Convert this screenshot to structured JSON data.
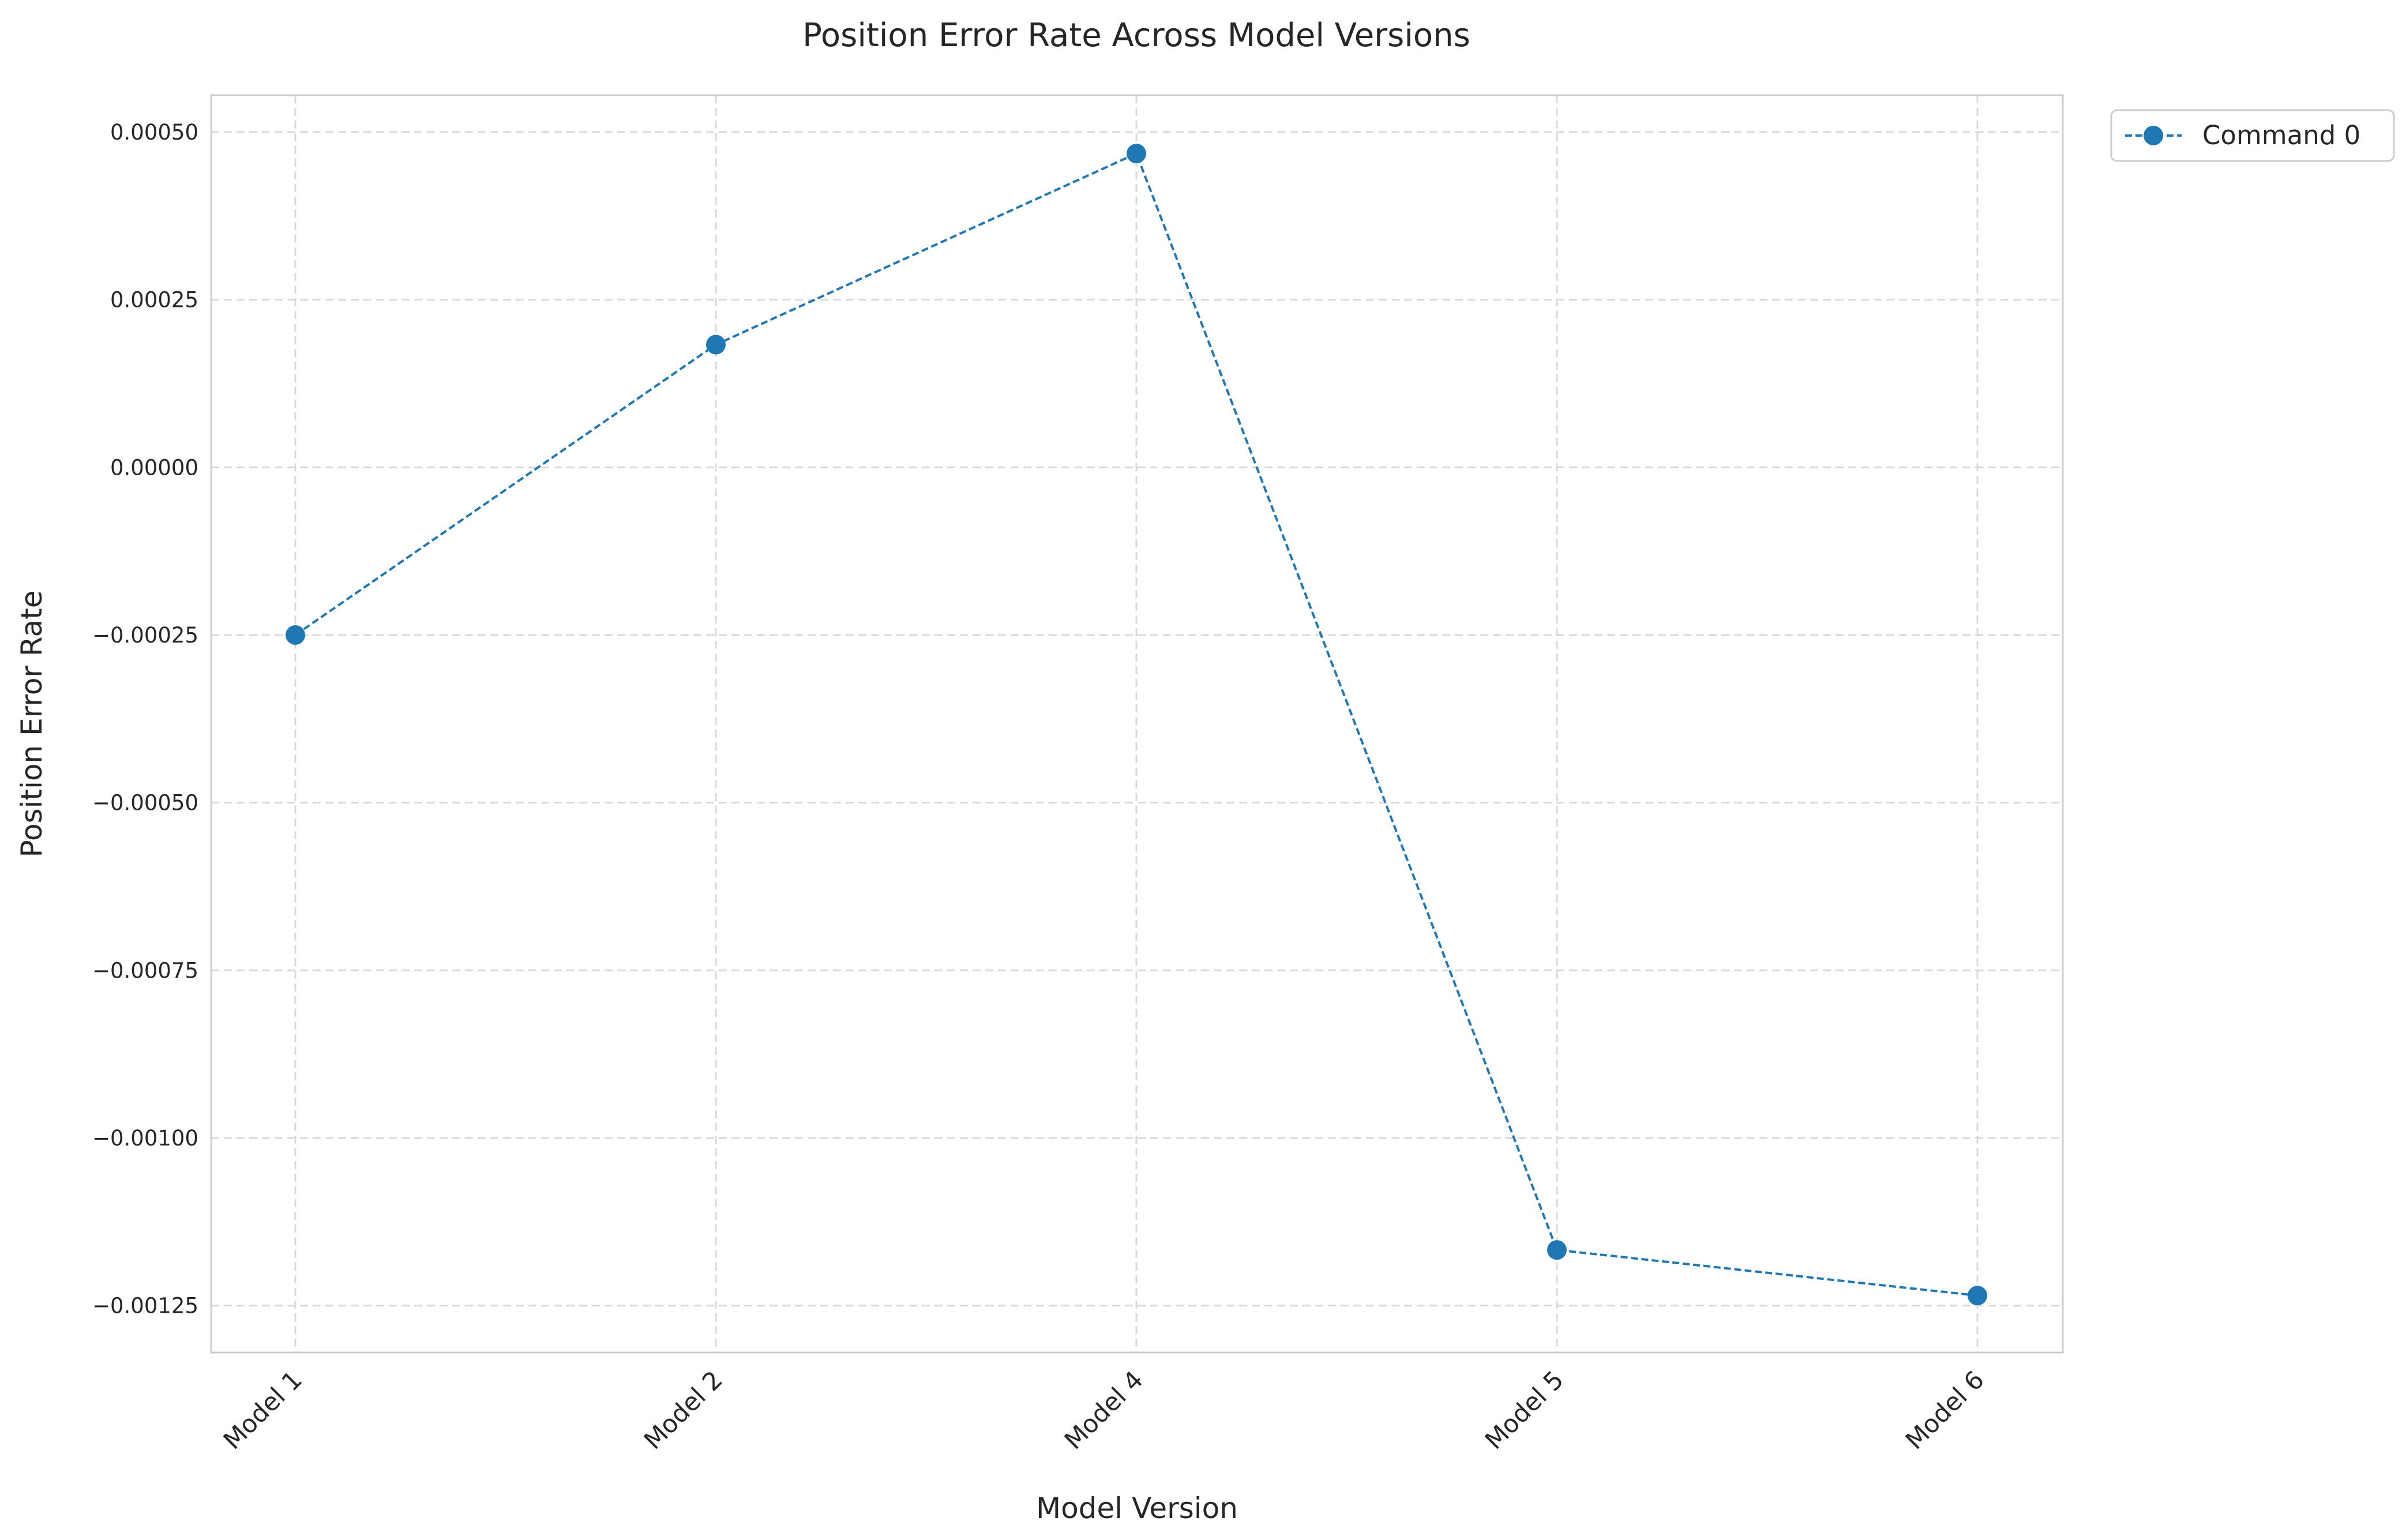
{
  "chart_data": {
    "type": "line",
    "title": "Position Error Rate Across Model Versions",
    "xlabel": "Model Version",
    "ylabel": "Position Error Rate",
    "categories": [
      "Model 1",
      "Model 2",
      "Model 4",
      "Model 5",
      "Model 6"
    ],
    "series": [
      {
        "name": "Command 0",
        "values": [
          -0.00025,
          0.000183,
          0.000468,
          -0.001167,
          -0.001235
        ],
        "color": "#1f77b4",
        "line_style": "dashed",
        "marker": "circle"
      }
    ],
    "ylim": [
      -0.00132,
      0.000555
    ],
    "yticks": [
      -0.00125,
      -0.001,
      -0.00075,
      -0.0005,
      -0.00025,
      0,
      0.00025,
      0.0005
    ],
    "ytick_labels": [
      "−0.00125",
      "−0.00100",
      "−0.00075",
      "−0.00050",
      "−0.00025",
      "0.00000",
      "0.00025",
      "0.00050"
    ],
    "grid": true,
    "grid_style": "dashed",
    "legend_position": "outside-top-right"
  }
}
